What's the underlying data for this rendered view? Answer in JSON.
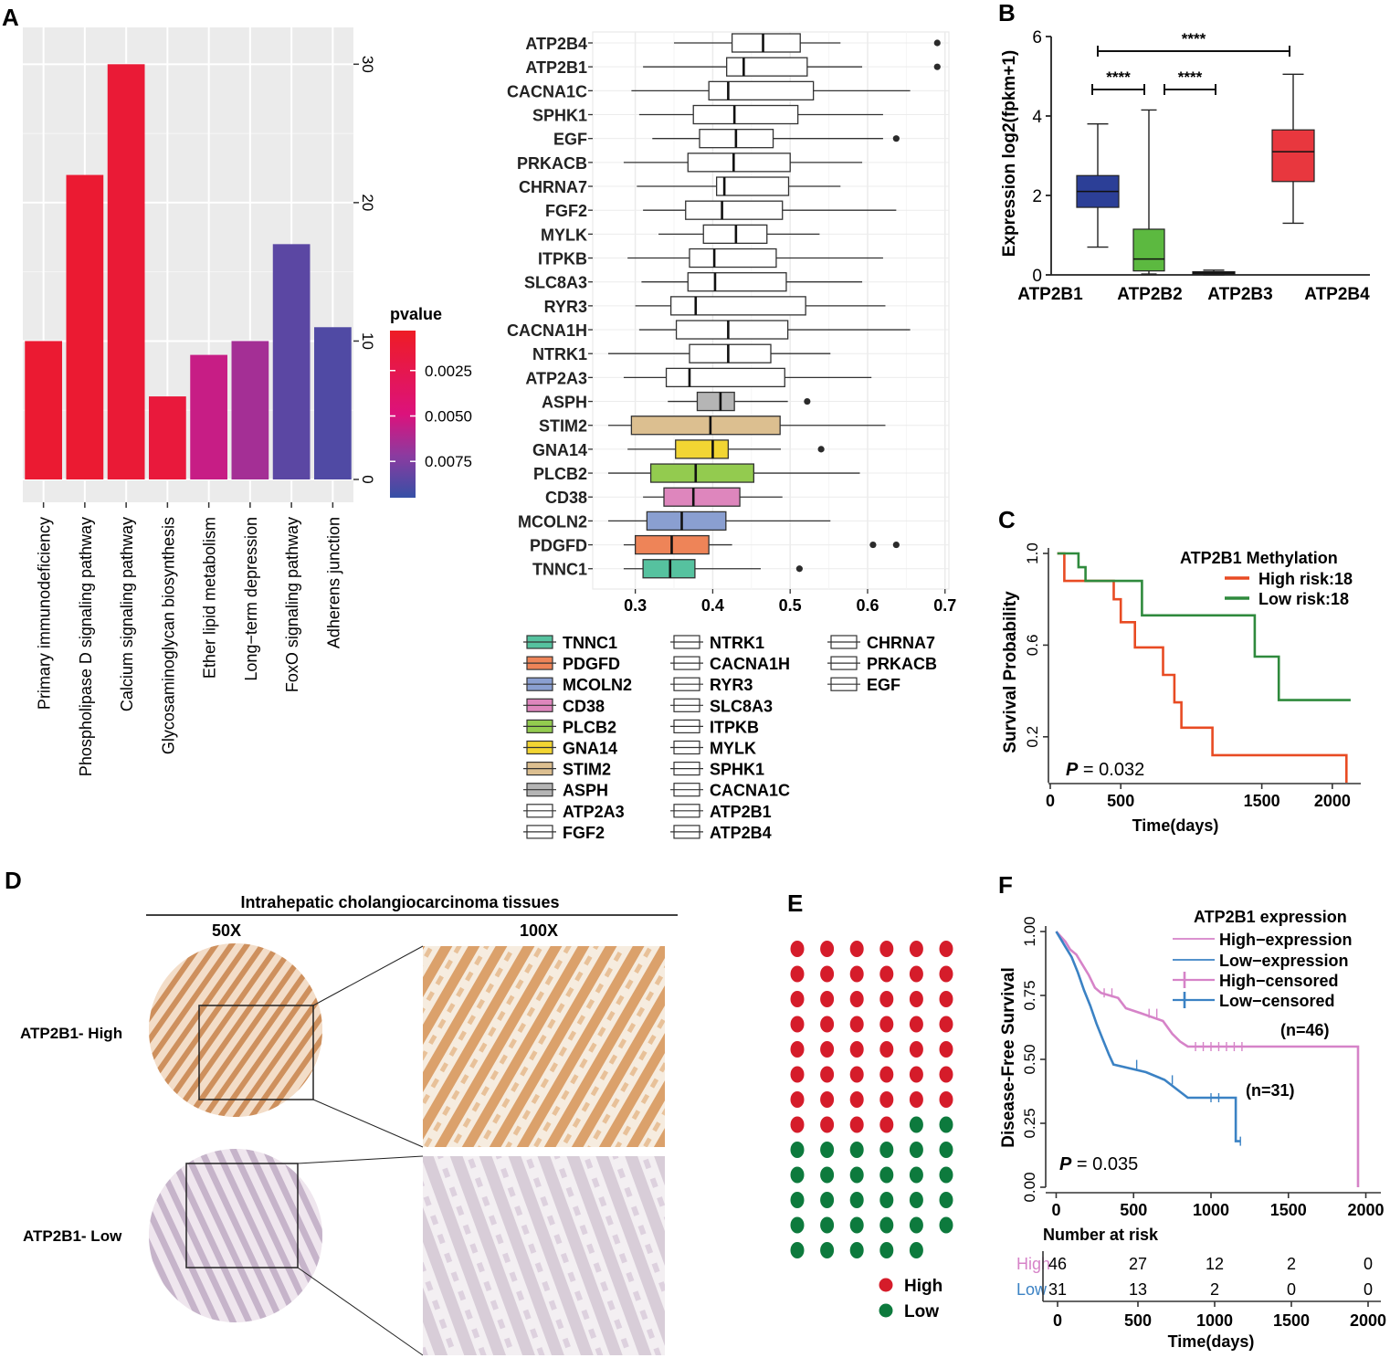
{
  "panels": {
    "a": "A",
    "b": "B",
    "c": "C",
    "d": "D",
    "e": "E",
    "f": "F"
  },
  "chart_data": [
    {
      "id": "A-bar",
      "type": "bar",
      "categories": [
        "Primary immunodeficiency",
        "Phospholipase D signaling pathway",
        "Calcium signaling pathway",
        "Glycosaminoglycan biosynthesis",
        "Ether lipid metabolism",
        "Long−term depression",
        "FoxO signaling pathway",
        "Adherens junction"
      ],
      "values": [
        10,
        22,
        30,
        6,
        9,
        10,
        17,
        11
      ],
      "pvalues": [
        0.001,
        0.001,
        0.0012,
        0.0015,
        0.0055,
        0.0065,
        0.0085,
        0.0088
      ],
      "ylim": [
        0,
        32
      ],
      "yticks": [
        0,
        10,
        20,
        30
      ],
      "legend": {
        "title": "pvalue",
        "ticks": [
          0.0025,
          0.005,
          0.0075
        ],
        "tick_labels": [
          "0.0025",
          "0.0050",
          "0.0075"
        ],
        "range": [
          0.0003,
          0.0095
        ]
      },
      "grid": true
    },
    {
      "id": "A-box",
      "type": "box",
      "genes": [
        "ATP2B4",
        "ATP2B1",
        "CACNA1C",
        "SPHK1",
        "EGF",
        "PRKACB",
        "CHRNA7",
        "FGF2",
        "MYLK",
        "ITPKB",
        "SLC8A3",
        "RYR3",
        "CACNA1H",
        "NTRK1",
        "ATP2A3",
        "ASPH",
        "STIM2",
        "GNA14",
        "PLCB2",
        "CD38",
        "MCOLN2",
        "PDGFD",
        "TNNC1"
      ],
      "stats": [
        [
          0.35,
          0.425,
          0.465,
          0.513,
          0.565,
          [
            0.69
          ]
        ],
        [
          0.31,
          0.418,
          0.44,
          0.522,
          0.593,
          [
            0.69
          ]
        ],
        [
          0.295,
          0.395,
          0.42,
          0.53,
          0.655,
          []
        ],
        [
          0.305,
          0.375,
          0.428,
          0.51,
          0.62,
          []
        ],
        [
          0.322,
          0.383,
          0.43,
          0.478,
          0.62,
          [
            0.637
          ]
        ],
        [
          0.285,
          0.368,
          0.427,
          0.5,
          0.593,
          []
        ],
        [
          0.302,
          0.405,
          0.415,
          0.498,
          0.565,
          []
        ],
        [
          0.31,
          0.365,
          0.412,
          0.49,
          0.637,
          []
        ],
        [
          0.33,
          0.388,
          0.43,
          0.47,
          0.538,
          []
        ],
        [
          0.29,
          0.37,
          0.402,
          0.482,
          0.62,
          []
        ],
        [
          0.308,
          0.368,
          0.403,
          0.495,
          0.593,
          []
        ],
        [
          0.3,
          0.346,
          0.378,
          0.52,
          0.623,
          []
        ],
        [
          0.305,
          0.353,
          0.42,
          0.497,
          0.655,
          []
        ],
        [
          0.265,
          0.37,
          0.42,
          0.475,
          0.552,
          []
        ],
        [
          0.285,
          0.34,
          0.37,
          0.493,
          0.605,
          []
        ],
        [
          0.342,
          0.38,
          0.41,
          0.428,
          0.497,
          [
            0.522
          ]
        ],
        [
          0.265,
          0.295,
          0.397,
          0.487,
          0.623,
          []
        ],
        [
          0.29,
          0.352,
          0.4,
          0.42,
          0.488,
          [
            0.54
          ]
        ],
        [
          0.265,
          0.32,
          0.378,
          0.453,
          0.59,
          []
        ],
        [
          0.31,
          0.337,
          0.375,
          0.435,
          0.49,
          []
        ],
        [
          0.265,
          0.315,
          0.36,
          0.417,
          0.552,
          []
        ],
        [
          0.285,
          0.3,
          0.347,
          0.395,
          0.425,
          [
            0.607,
            0.637
          ]
        ],
        [
          0.285,
          0.31,
          0.345,
          0.377,
          0.462,
          [
            0.512
          ]
        ]
      ],
      "colors": {
        "ASPH": "#b5b5b5",
        "STIM2": "#dcbf90",
        "GNA14": "#f2d533",
        "PLCB2": "#93cb4f",
        "CD38": "#de86bd",
        "MCOLN2": "#8a9fd1",
        "PDGFD": "#ee8458",
        "TNNC1": "#56c29f"
      },
      "xlim": [
        0.245,
        0.705
      ],
      "xticks": [
        0.3,
        0.4,
        0.5,
        0.6,
        0.7
      ],
      "xtick_labels": [
        "0.3",
        "0.4",
        "0.5",
        "0.6",
        "0.7"
      ],
      "legend_columns": [
        [
          "TNNC1",
          "PDGFD",
          "MCOLN2",
          "CD38",
          "PLCB2",
          "GNA14",
          "STIM2",
          "ASPH",
          "ATP2A3",
          "FGF2"
        ],
        [
          "NTRK1",
          "CACNA1H",
          "RYR3",
          "SLC8A3",
          "ITPKB",
          "MYLK",
          "SPHK1",
          "CACNA1C",
          "ATP2B1",
          "ATP2B4"
        ],
        [
          "CHRNA7",
          "PRKACB",
          "EGF"
        ]
      ]
    },
    {
      "id": "B",
      "type": "box",
      "ylabel": "Expression  log2(fpkm+1)",
      "categories": [
        "ATP2B1",
        "ATP2B2",
        "ATP2B3",
        "ATP2B4"
      ],
      "stats": [
        [
          0.7,
          1.7,
          2.1,
          2.5,
          3.8
        ],
        [
          0.02,
          0.1,
          0.4,
          1.15,
          4.15
        ],
        [
          0,
          0.02,
          0.05,
          0.08,
          0.12
        ],
        [
          1.3,
          2.35,
          3.1,
          3.65,
          5.05
        ]
      ],
      "colors": [
        "#2c3f97",
        "#5cb940",
        "#2b2b2b",
        "#e8373e"
      ],
      "ylim": [
        0,
        6
      ],
      "yticks": [
        0,
        2,
        4,
        6
      ],
      "significance": [
        {
          "from": 1,
          "to": 4,
          "label": "****"
        },
        {
          "from": 1,
          "to": 2,
          "label": "****"
        },
        {
          "from": 2,
          "to": 3,
          "label": "****"
        }
      ]
    },
    {
      "id": "C",
      "type": "line",
      "subtype": "kaplan-meier",
      "xlabel": "Time(days)",
      "ylabel": "Survival Probability",
      "xlim": [
        0,
        2150
      ],
      "ylim": [
        0,
        1
      ],
      "xticks": [
        0,
        500,
        1500,
        2000
      ],
      "yticks": [
        0.2,
        0.6,
        1.0
      ],
      "ytick_labels": [
        "0.2",
        "0.6",
        "1.0"
      ],
      "legend_title": "ATP2B1 Methylation",
      "pvalue_prefix": "P",
      "pvalue_text": " = 0.032",
      "series": [
        {
          "name": "High risk:18",
          "color": "#e84b23",
          "points": [
            [
              50,
              1
            ],
            [
              100,
              1
            ],
            [
              100,
              0.88
            ],
            [
              250,
              0.88
            ],
            [
              250,
              0.88
            ],
            [
              450,
              0.88
            ],
            [
              450,
              0.8
            ],
            [
              500,
              0.8
            ],
            [
              500,
              0.7
            ],
            [
              600,
              0.7
            ],
            [
              600,
              0.59
            ],
            [
              800,
              0.59
            ],
            [
              800,
              0.47
            ],
            [
              880,
              0.47
            ],
            [
              880,
              0.35
            ],
            [
              930,
              0.35
            ],
            [
              930,
              0.24
            ],
            [
              1150,
              0.24
            ],
            [
              1150,
              0.12
            ],
            [
              2100,
              0.12
            ],
            [
              2100,
              0
            ]
          ]
        },
        {
          "name": "Low  risk:18",
          "color": "#2f8a3d",
          "points": [
            [
              50,
              1
            ],
            [
              200,
              1
            ],
            [
              200,
              0.94
            ],
            [
              250,
              0.94
            ],
            [
              250,
              0.88
            ],
            [
              650,
              0.88
            ],
            [
              650,
              0.73
            ],
            [
              1450,
              0.73
            ],
            [
              1450,
              0.55
            ],
            [
              1620,
              0.55
            ],
            [
              1620,
              0.36
            ],
            [
              2130,
              0.36
            ]
          ]
        }
      ]
    },
    {
      "id": "F",
      "type": "line",
      "subtype": "kaplan-meier",
      "xlabel": "Time(days)",
      "ylabel": "Disease-Free Survival",
      "xlim": [
        -50,
        2050
      ],
      "ylim": [
        0,
        1
      ],
      "xticks": [
        0,
        500,
        1000,
        1500,
        2000
      ],
      "yticks": [
        0,
        0.25,
        0.5,
        0.75,
        1
      ],
      "ytick_labels": [
        "0.00",
        "0.25",
        "0.50",
        "0.75",
        "1.00"
      ],
      "legend_title": "ATP2B1 expression",
      "legend": [
        "High−expression",
        "Low−expression",
        "High−censored",
        "Low−censored"
      ],
      "pvalue_prefix": "P",
      "pvalue_text": " = 0.035",
      "series": [
        {
          "name": "High−expression",
          "n_label": "(n=46)",
          "color": "#d683c8",
          "points": [
            [
              0,
              1
            ],
            [
              30,
              0.98
            ],
            [
              60,
              0.96
            ],
            [
              90,
              0.93
            ],
            [
              130,
              0.91
            ],
            [
              170,
              0.87
            ],
            [
              210,
              0.83
            ],
            [
              250,
              0.78
            ],
            [
              290,
              0.76
            ],
            [
              400,
              0.74
            ],
            [
              450,
              0.7
            ],
            [
              550,
              0.68
            ],
            [
              690,
              0.65
            ],
            [
              750,
              0.6
            ],
            [
              800,
              0.57
            ],
            [
              850,
              0.55
            ],
            [
              1950,
              0.55
            ],
            [
              1950,
              0
            ]
          ],
          "censored": [
            [
              310,
              0.76
            ],
            [
              360,
              0.76
            ],
            [
              600,
              0.68
            ],
            [
              650,
              0.68
            ],
            [
              900,
              0.55
            ],
            [
              950,
              0.55
            ],
            [
              1000,
              0.55
            ],
            [
              1050,
              0.55
            ],
            [
              1100,
              0.55
            ],
            [
              1150,
              0.55
            ],
            [
              1200,
              0.55
            ]
          ]
        },
        {
          "name": "Low−expression",
          "n_label": "(n=31)",
          "color": "#3b82c4",
          "points": [
            [
              0,
              1
            ],
            [
              30,
              0.97
            ],
            [
              60,
              0.94
            ],
            [
              100,
              0.9
            ],
            [
              140,
              0.84
            ],
            [
              180,
              0.77
            ],
            [
              220,
              0.71
            ],
            [
              260,
              0.64
            ],
            [
              300,
              0.58
            ],
            [
              340,
              0.52
            ],
            [
              370,
              0.48
            ],
            [
              580,
              0.45
            ],
            [
              700,
              0.42
            ],
            [
              850,
              0.35
            ],
            [
              1160,
              0.35
            ],
            [
              1160,
              0.18
            ],
            [
              1190,
              0.18
            ]
          ],
          "censored": [
            [
              520,
              0.48
            ],
            [
              750,
              0.42
            ],
            [
              1000,
              0.35
            ],
            [
              1050,
              0.35
            ],
            [
              1190,
              0.18
            ]
          ]
        }
      ],
      "risk_table": {
        "title": "Number at risk",
        "rows": [
          {
            "label": "High",
            "color": "#d683c8",
            "values": [
              "46",
              "27",
              "12",
              "2",
              "0"
            ]
          },
          {
            "label": "Low",
            "color": "#3b82c4",
            "values": [
              "31",
              "13",
              "2",
              "0",
              "0"
            ]
          }
        ],
        "xticks": [
          "0",
          "500",
          "1000",
          "1500",
          "2000"
        ],
        "xlabel": "Time(days)"
      }
    },
    {
      "id": "E",
      "type": "dot-grid",
      "columns": 6,
      "high": 46,
      "low": 31,
      "legend": [
        {
          "label": "High",
          "color": "#d51c2a"
        },
        {
          "label": "Low",
          "color": "#0d7a3d"
        }
      ]
    }
  ],
  "histology": {
    "title": "Intrahepatic cholangiocarcinoma tissues",
    "col_labels": [
      "50X",
      "100X"
    ],
    "row_labels": [
      "ATP2B1- High",
      "ATP2B1- Low"
    ]
  }
}
